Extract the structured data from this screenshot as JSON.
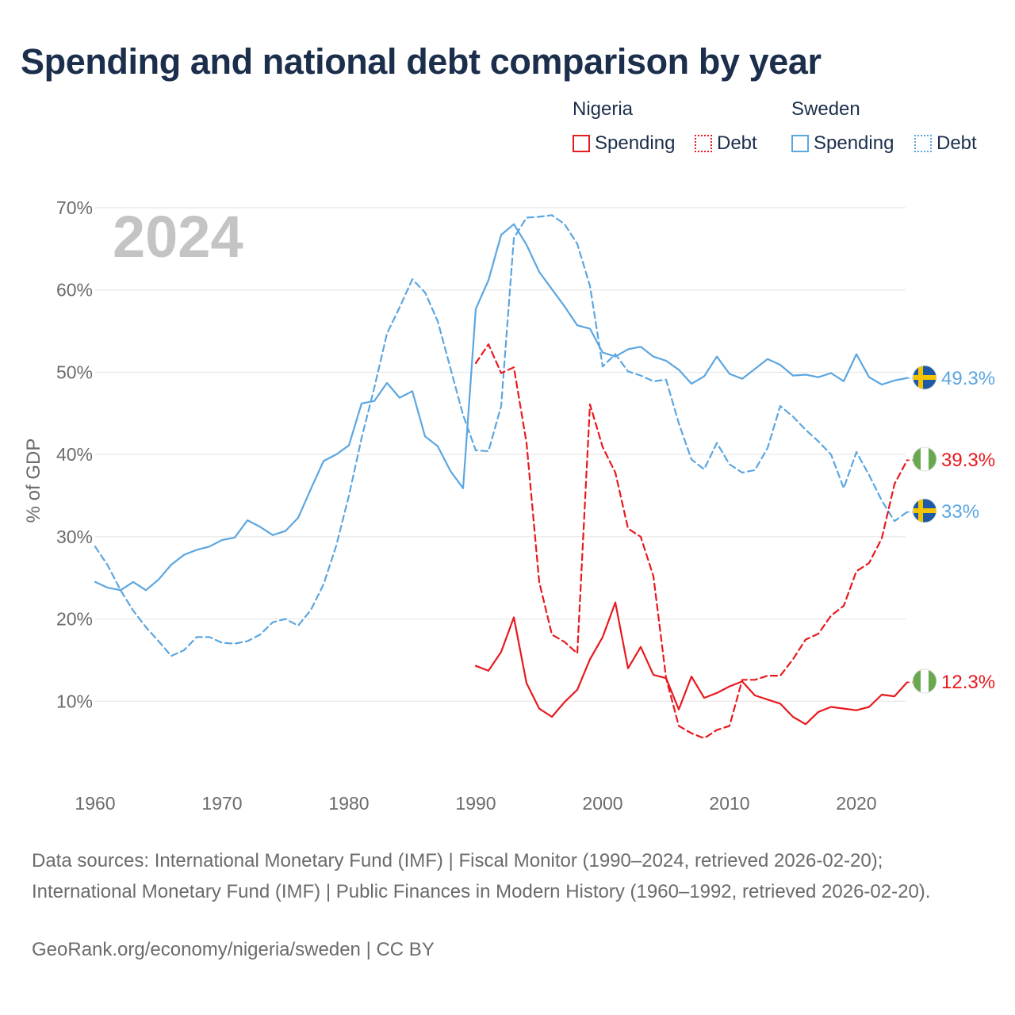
{
  "title": "Spending and national debt comparison by year",
  "legend": {
    "nigeria": {
      "name": "Nigeria",
      "spending": "Spending",
      "debt": "Debt"
    },
    "sweden": {
      "name": "Sweden",
      "spending": "Spending",
      "debt": "Debt"
    }
  },
  "colors": {
    "nigeria": "#e8191f",
    "sweden": "#5ca6e0",
    "grid": "#e2e2e2",
    "axis_text": "#6b6b6b",
    "year_label": "#c4c4c4"
  },
  "chart_data": {
    "type": "line",
    "year_label": "2024",
    "ylabel": "% of GDP",
    "xlim": [
      1960,
      2024
    ],
    "ylim": [
      0,
      70
    ],
    "x_ticks": [
      "1960",
      "1970",
      "1980",
      "1990",
      "2000",
      "2010",
      "2020"
    ],
    "y_ticks": [
      "10%",
      "20%",
      "30%",
      "40%",
      "50%",
      "60%",
      "70%"
    ],
    "series": [
      {
        "name": "Sweden Spending",
        "country": "sweden",
        "style": "solid",
        "end_label": "49.3%",
        "start_year": 1960,
        "values": [
          24.5,
          23.8,
          23.5,
          24.5,
          23.5,
          24.8,
          26.6,
          27.8,
          28.4,
          28.8,
          29.6,
          29.9,
          32.0,
          31.2,
          30.2,
          30.7,
          32.3,
          35.8,
          39.2,
          40.0,
          41.1,
          46.2,
          46.5,
          48.7,
          46.9,
          47.7,
          42.2,
          41.0,
          38.0,
          35.9,
          57.7,
          61.2,
          66.7,
          68.0,
          65.5,
          62.2,
          60.1,
          58.0,
          55.7,
          55.3,
          52.4,
          51.9,
          52.8,
          53.1,
          51.9,
          51.4,
          50.3,
          48.6,
          49.5,
          51.9,
          49.8,
          49.2,
          50.4,
          51.6,
          50.9,
          49.6,
          49.7,
          49.4,
          49.9,
          48.9,
          52.2,
          49.4,
          48.5,
          49.0,
          49.3
        ]
      },
      {
        "name": "Sweden Debt",
        "country": "sweden",
        "style": "dashed",
        "end_label": "33%",
        "start_year": 1960,
        "values": [
          28.8,
          26.5,
          23.5,
          21.0,
          19.0,
          17.3,
          15.5,
          16.2,
          17.8,
          17.8,
          17.1,
          17.0,
          17.3,
          18.1,
          19.6,
          20.0,
          19.2,
          21.1,
          24.2,
          28.9,
          35.0,
          42.0,
          48.1,
          54.7,
          57.9,
          61.3,
          59.7,
          56.2,
          50.5,
          44.8,
          40.5,
          40.4,
          45.9,
          66.3,
          68.8,
          68.9,
          69.1,
          68.0,
          65.6,
          60.5,
          50.7,
          52.2,
          50.1,
          49.6,
          48.9,
          49.1,
          43.8,
          39.4,
          38.2,
          41.4,
          38.8,
          37.8,
          38.1,
          40.8,
          45.9,
          44.6,
          43.0,
          41.6,
          40.0,
          35.9,
          40.3,
          37.5,
          34.4,
          31.9,
          33.0
        ]
      },
      {
        "name": "Nigeria Spending",
        "country": "nigeria",
        "style": "solid",
        "end_label": "12.3%",
        "start_year": 1990,
        "values": [
          14.3,
          13.7,
          16.0,
          20.2,
          12.2,
          9.1,
          8.1,
          9.9,
          11.4,
          15.1,
          17.8,
          22.0,
          14.0,
          16.6,
          13.2,
          12.8,
          9.0,
          13.0,
          10.4,
          11.0,
          11.8,
          12.4,
          10.7,
          10.2,
          9.7,
          8.1,
          7.2,
          8.7,
          9.3,
          9.1,
          8.9,
          9.3,
          10.8,
          10.6,
          12.3
        ]
      },
      {
        "name": "Nigeria Debt",
        "country": "nigeria",
        "style": "dashed",
        "end_label": "39.3%",
        "start_year": 1990,
        "values": [
          51.1,
          53.4,
          49.9,
          50.6,
          41.4,
          24.5,
          18.1,
          17.2,
          15.8,
          46.1,
          40.9,
          37.8,
          31.0,
          30.0,
          25.2,
          12.8,
          7.0,
          6.1,
          5.5,
          6.5,
          7.0,
          12.6,
          12.6,
          13.1,
          13.1,
          15.1,
          17.5,
          18.2,
          20.4,
          21.6,
          25.8,
          26.8,
          29.8,
          36.4,
          39.3
        ]
      }
    ]
  },
  "source_text": "Data sources: International Monetary Fund (IMF) | Fiscal Monitor (1990–2024, retrieved 2026-02-20); International Monetary Fund (IMF) | Public Finances in Modern History (1960–1992, retrieved 2026-02-20).",
  "credit_text": "GeoRank.org/economy/nigeria/sweden | CC BY"
}
